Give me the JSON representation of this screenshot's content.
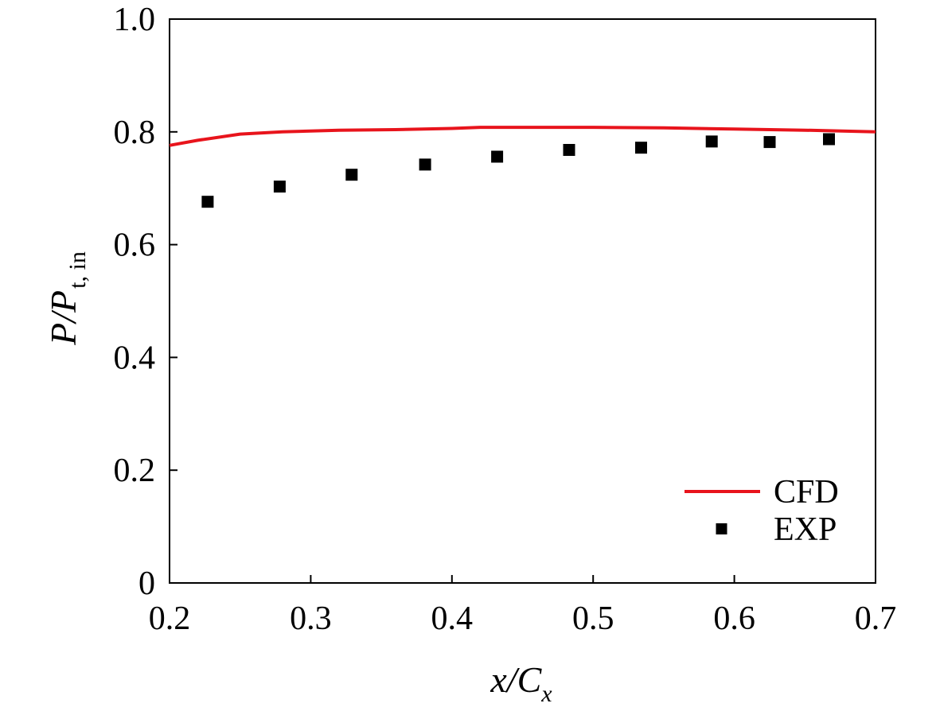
{
  "chart_data": {
    "type": "line",
    "xlabel": {
      "main": "x/C",
      "sub": "x"
    },
    "ylabel": {
      "main": "P/P",
      "sub": "t, in"
    },
    "xlim": [
      0.2,
      0.7
    ],
    "ylim": [
      0,
      1.0
    ],
    "x_ticks": [
      "0.2",
      "0.3",
      "0.4",
      "0.5",
      "0.6",
      "0.7"
    ],
    "y_ticks": [
      "0",
      "0.2",
      "0.4",
      "0.6",
      "0.8",
      "1.0"
    ],
    "x_tick_values": [
      0.2,
      0.3,
      0.4,
      0.5,
      0.6,
      0.7
    ],
    "y_tick_values": [
      0,
      0.2,
      0.4,
      0.6,
      0.8,
      1.0
    ],
    "grid": false,
    "legend_position": "bottom-right",
    "series": [
      {
        "name": "CFD",
        "kind": "line",
        "color": "#e8141c",
        "x": [
          0.2,
          0.22,
          0.25,
          0.28,
          0.32,
          0.36,
          0.4,
          0.42,
          0.45,
          0.5,
          0.55,
          0.6,
          0.65,
          0.7
        ],
        "y": [
          0.776,
          0.785,
          0.796,
          0.8,
          0.803,
          0.804,
          0.806,
          0.808,
          0.808,
          0.808,
          0.807,
          0.805,
          0.803,
          0.8
        ]
      },
      {
        "name": "EXP",
        "kind": "scatter",
        "marker": "square",
        "color": "#000000",
        "x": [
          0.227,
          0.278,
          0.329,
          0.381,
          0.432,
          0.483,
          0.534,
          0.584,
          0.625,
          0.667
        ],
        "y": [
          0.676,
          0.703,
          0.724,
          0.742,
          0.756,
          0.768,
          0.772,
          0.783,
          0.782,
          0.787
        ]
      }
    ]
  }
}
